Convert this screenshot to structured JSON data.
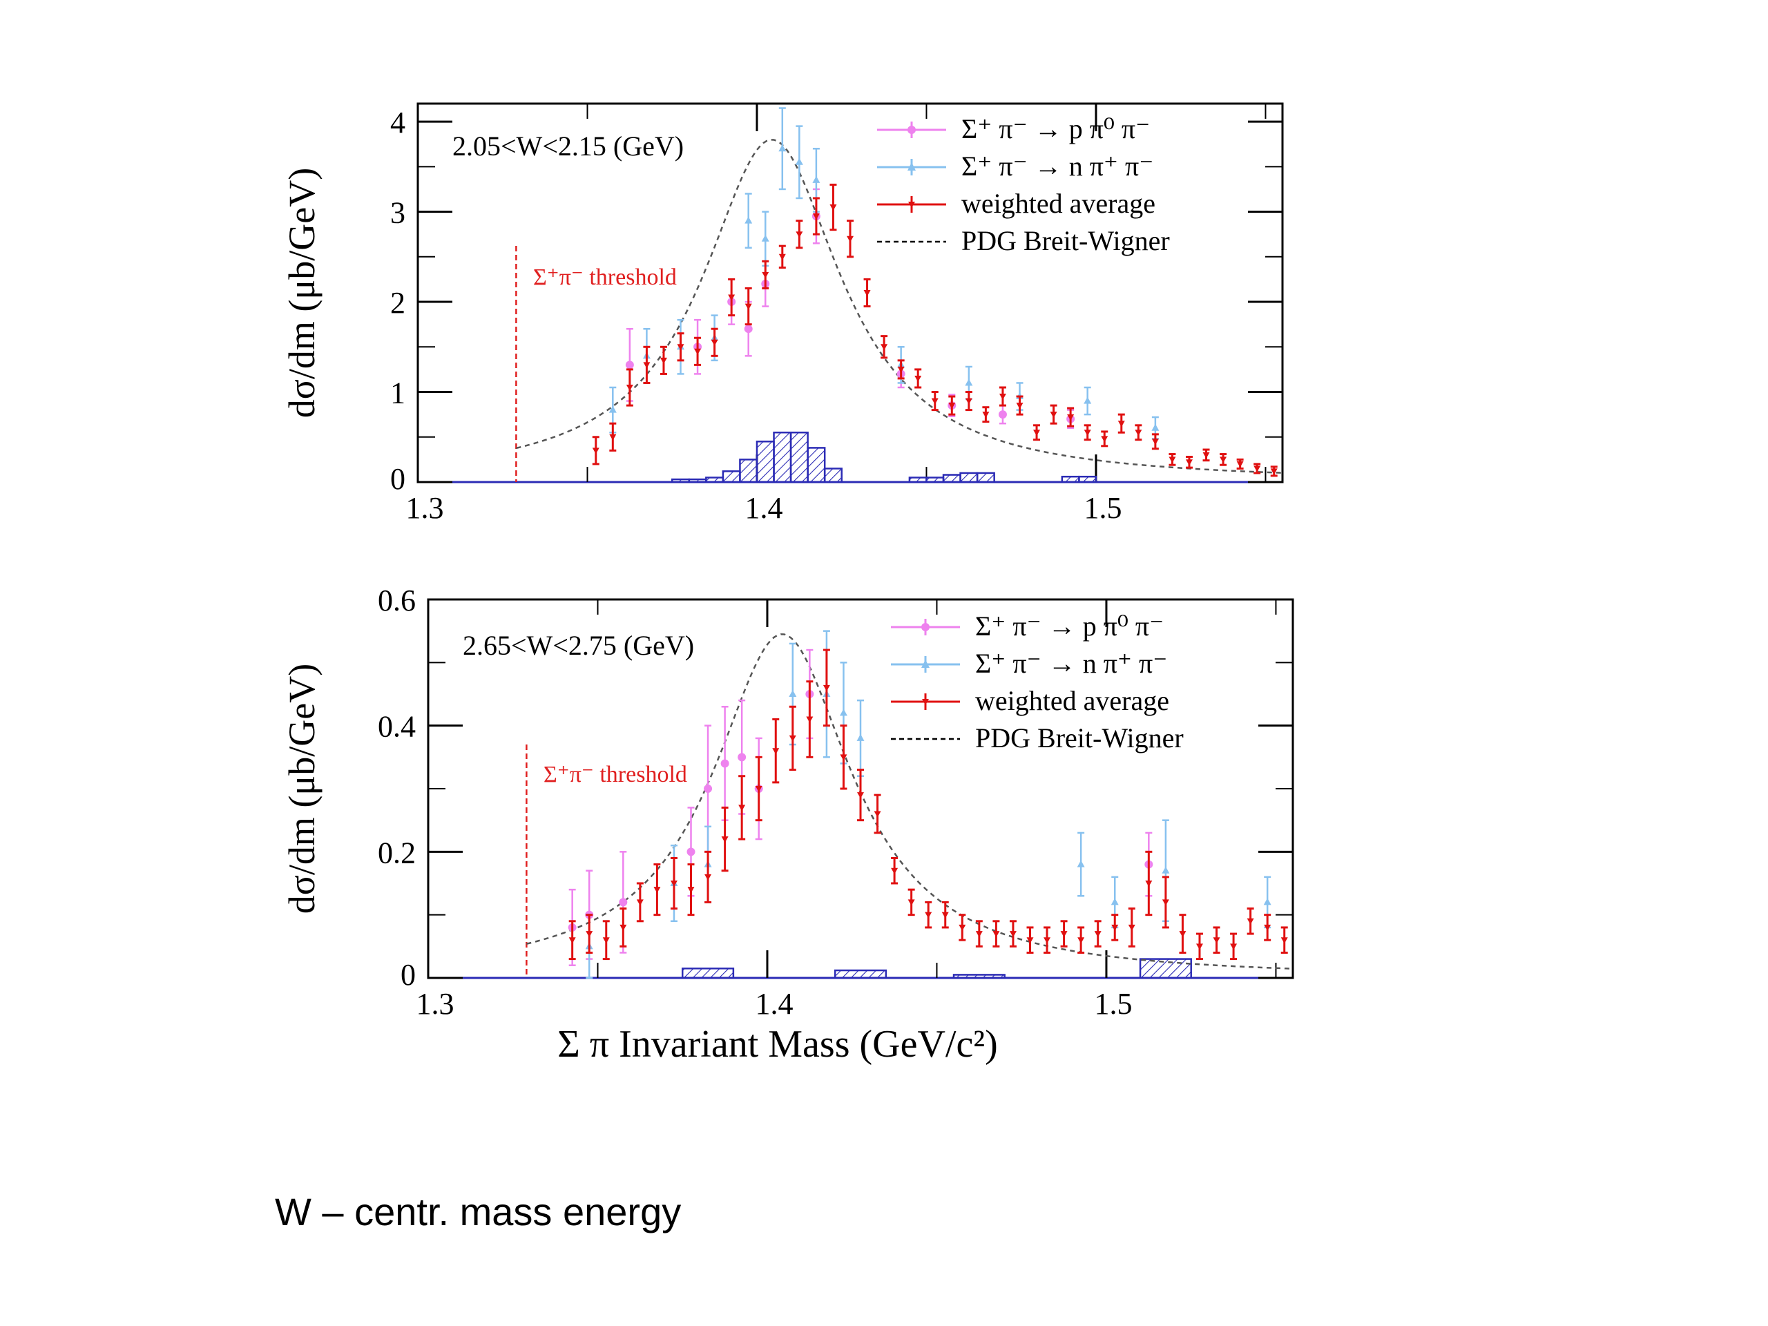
{
  "caption": "W – centr. mass energy",
  "colors": {
    "magenta": "#ee82ee",
    "blue": "#87c1ef",
    "red": "#e01010",
    "threshold": "#e02020",
    "hist": "#2b2bb5",
    "bw": "#555555"
  },
  "chart_data": [
    {
      "type": "scatter",
      "panel": "top",
      "annotation": "2.05<W<2.15 (GeV)",
      "threshold_label": "Σ⁺π⁻ threshold",
      "threshold_x": 1.329,
      "ylabel": "dσ/dm (μb/GeV)",
      "xlabel": "",
      "xlim": [
        1.3,
        1.555
      ],
      "ylim": [
        0,
        4.2
      ],
      "xticks": [
        1.3,
        1.4,
        1.5
      ],
      "xtick_labels": [
        "1.3",
        "1.4",
        "1.5"
      ],
      "yticks": [
        0,
        1,
        2,
        3,
        4
      ],
      "ytick_labels": [
        "0",
        "1",
        "2",
        "3",
        "4"
      ],
      "legend_position": "top-right",
      "legend": [
        {
          "label": "Σ⁺ π⁻ → p π⁰ π⁻",
          "kind": "magenta"
        },
        {
          "label": "Σ⁺ π⁻ → n π⁺ π⁻",
          "kind": "blue"
        },
        {
          "label": "weighted average",
          "kind": "red"
        },
        {
          "label": "PDG Breit-Wigner",
          "kind": "dashed"
        }
      ],
      "breit_wigner": {
        "m0": 1.4044,
        "gamma": 0.05,
        "peak": 3.8
      },
      "series": [
        {
          "name": "Σ⁺ π⁻ → p π⁰ π⁻",
          "kind": "magenta",
          "x": [
            1.3625,
            1.3825,
            1.3925,
            1.3975,
            1.4025,
            1.4175,
            1.4425,
            1.4575,
            1.4725,
            1.4925
          ],
          "y": [
            1.3,
            1.5,
            2.0,
            1.7,
            2.2,
            2.95,
            1.2,
            0.85,
            0.75,
            0.7
          ],
          "err": [
            0.4,
            0.3,
            0.25,
            0.3,
            0.25,
            0.3,
            0.15,
            0.12,
            0.1,
            0.1
          ]
        },
        {
          "name": "Σ⁺ π⁻ → n π⁺ π⁻",
          "kind": "blue",
          "x": [
            1.3575,
            1.3675,
            1.3775,
            1.3875,
            1.3975,
            1.4025,
            1.4075,
            1.4125,
            1.4175,
            1.4425,
            1.4625,
            1.4775,
            1.4975,
            1.5175
          ],
          "y": [
            0.8,
            1.4,
            1.5,
            1.6,
            2.9,
            2.7,
            3.7,
            3.55,
            3.35,
            1.3,
            1.1,
            0.95,
            0.9,
            0.6
          ],
          "err": [
            0.25,
            0.3,
            0.3,
            0.25,
            0.3,
            0.3,
            0.45,
            0.4,
            0.35,
            0.2,
            0.18,
            0.15,
            0.15,
            0.12
          ]
        },
        {
          "name": "weighted average",
          "kind": "red",
          "x": [
            1.3525,
            1.3575,
            1.3625,
            1.3675,
            1.3725,
            1.3775,
            1.3825,
            1.3875,
            1.3925,
            1.3975,
            1.4025,
            1.4075,
            1.4125,
            1.4175,
            1.4225,
            1.4275,
            1.4325,
            1.4375,
            1.4425,
            1.4475,
            1.4525,
            1.4575,
            1.4625,
            1.4675,
            1.4725,
            1.4775,
            1.4825,
            1.4875,
            1.4925,
            1.4975,
            1.5025,
            1.5075,
            1.5125,
            1.5175,
            1.5225,
            1.5275,
            1.5325,
            1.5375,
            1.5425,
            1.5475,
            1.5525
          ],
          "y": [
            0.35,
            0.5,
            1.05,
            1.3,
            1.35,
            1.5,
            1.45,
            1.55,
            2.05,
            1.95,
            2.3,
            2.5,
            2.75,
            2.95,
            3.05,
            2.7,
            2.1,
            1.5,
            1.25,
            1.15,
            0.9,
            0.85,
            0.9,
            0.75,
            0.95,
            0.85,
            0.55,
            0.75,
            0.72,
            0.55,
            0.48,
            0.65,
            0.55,
            0.45,
            0.25,
            0.22,
            0.3,
            0.25,
            0.2,
            0.15,
            0.12
          ],
          "err": [
            0.15,
            0.15,
            0.2,
            0.2,
            0.15,
            0.15,
            0.15,
            0.15,
            0.2,
            0.2,
            0.15,
            0.12,
            0.15,
            0.2,
            0.25,
            0.2,
            0.15,
            0.12,
            0.1,
            0.1,
            0.1,
            0.1,
            0.1,
            0.08,
            0.1,
            0.1,
            0.08,
            0.1,
            0.1,
            0.08,
            0.08,
            0.1,
            0.08,
            0.08,
            0.06,
            0.06,
            0.06,
            0.06,
            0.05,
            0.05,
            0.05
          ]
        }
      ],
      "systematics": {
        "x": [
          1.3775,
          1.3825,
          1.3875,
          1.3925,
          1.3975,
          1.4025,
          1.4075,
          1.4125,
          1.4175,
          1.4225,
          1.4475,
          1.4525,
          1.4575,
          1.4625,
          1.4675,
          1.4925,
          1.4975
        ],
        "h": [
          0.03,
          0.03,
          0.05,
          0.12,
          0.25,
          0.45,
          0.55,
          0.55,
          0.38,
          0.15,
          0.05,
          0.05,
          0.08,
          0.1,
          0.1,
          0.06,
          0.06
        ]
      }
    },
    {
      "type": "scatter",
      "panel": "bottom",
      "annotation": "2.65<W<2.75 (GeV)",
      "threshold_label": "Σ⁺π⁻ threshold",
      "threshold_x": 1.329,
      "ylabel": "dσ/dm (μb/GeV)",
      "xlabel": "Σ π Invariant Mass (GeV/c²)",
      "xlim": [
        1.3,
        1.555
      ],
      "ylim": [
        0,
        0.6
      ],
      "xticks": [
        1.3,
        1.4,
        1.5
      ],
      "xtick_labels": [
        "1.3",
        "1.4",
        "1.5"
      ],
      "yticks": [
        0,
        0.2,
        0.4,
        0.6
      ],
      "ytick_labels": [
        "0",
        "0.2",
        "0.4",
        "0.6"
      ],
      "legend_position": "top-right",
      "legend": [
        {
          "label": "Σ⁺ π⁻ → p π⁰ π⁻",
          "kind": "magenta"
        },
        {
          "label": "Σ⁺ π⁻ → n π⁺ π⁻",
          "kind": "blue"
        },
        {
          "label": "weighted average",
          "kind": "red"
        },
        {
          "label": "PDG Breit-Wigner",
          "kind": "dashed"
        }
      ],
      "breit_wigner": {
        "m0": 1.4044,
        "gamma": 0.05,
        "peak": 0.545
      },
      "series": [
        {
          "name": "Σ⁺ π⁻ → p π⁰ π⁻",
          "kind": "magenta",
          "x": [
            1.3425,
            1.3475,
            1.3575,
            1.3775,
            1.3825,
            1.3875,
            1.3925,
            1.3975,
            1.4125,
            1.5125
          ],
          "y": [
            0.08,
            0.1,
            0.12,
            0.2,
            0.3,
            0.34,
            0.35,
            0.3,
            0.45,
            0.18
          ],
          "err": [
            0.06,
            0.07,
            0.08,
            0.07,
            0.1,
            0.09,
            0.09,
            0.08,
            0.07,
            0.05
          ]
        },
        {
          "name": "Σ⁺ π⁻ → n π⁺ π⁻",
          "kind": "blue",
          "x": [
            1.3475,
            1.3725,
            1.3825,
            1.4075,
            1.4175,
            1.4225,
            1.4275,
            1.4925,
            1.5025,
            1.5175,
            1.5475
          ],
          "y": [
            0.05,
            0.15,
            0.18,
            0.45,
            0.45,
            0.42,
            0.38,
            0.18,
            0.12,
            0.17,
            0.12
          ],
          "err": [
            0.05,
            0.06,
            0.06,
            0.08,
            0.1,
            0.08,
            0.06,
            0.05,
            0.04,
            0.08,
            0.04
          ]
        },
        {
          "name": "weighted average",
          "kind": "red",
          "x": [
            1.3425,
            1.3475,
            1.3525,
            1.3575,
            1.3625,
            1.3675,
            1.3725,
            1.3775,
            1.3825,
            1.3875,
            1.3925,
            1.3975,
            1.4025,
            1.4075,
            1.4125,
            1.4175,
            1.4225,
            1.4275,
            1.4325,
            1.4375,
            1.4425,
            1.4475,
            1.4525,
            1.4575,
            1.4625,
            1.4675,
            1.4725,
            1.4775,
            1.4825,
            1.4875,
            1.4925,
            1.4975,
            1.5025,
            1.5075,
            1.5125,
            1.5175,
            1.5225,
            1.5275,
            1.5325,
            1.5375,
            1.5425,
            1.5475,
            1.5525
          ],
          "y": [
            0.06,
            0.07,
            0.06,
            0.08,
            0.12,
            0.14,
            0.15,
            0.14,
            0.16,
            0.22,
            0.27,
            0.3,
            0.36,
            0.38,
            0.41,
            0.46,
            0.35,
            0.29,
            0.26,
            0.17,
            0.12,
            0.1,
            0.1,
            0.08,
            0.07,
            0.07,
            0.07,
            0.06,
            0.06,
            0.07,
            0.06,
            0.07,
            0.08,
            0.08,
            0.15,
            0.12,
            0.07,
            0.05,
            0.06,
            0.05,
            0.09,
            0.08,
            0.06
          ],
          "err": [
            0.03,
            0.03,
            0.03,
            0.03,
            0.03,
            0.04,
            0.04,
            0.04,
            0.04,
            0.05,
            0.05,
            0.05,
            0.05,
            0.05,
            0.06,
            0.06,
            0.05,
            0.04,
            0.03,
            0.02,
            0.02,
            0.02,
            0.02,
            0.02,
            0.02,
            0.02,
            0.02,
            0.02,
            0.02,
            0.02,
            0.02,
            0.02,
            0.02,
            0.03,
            0.05,
            0.04,
            0.03,
            0.02,
            0.02,
            0.02,
            0.02,
            0.02,
            0.02
          ]
        }
      ],
      "systematics": {
        "x": [
          1.3825,
          1.4275,
          1.4625,
          1.5175
        ],
        "w": [
          0.015,
          0.015,
          0.015,
          0.015
        ],
        "h": [
          0.015,
          0.012,
          0.005,
          0.03
        ]
      }
    }
  ]
}
